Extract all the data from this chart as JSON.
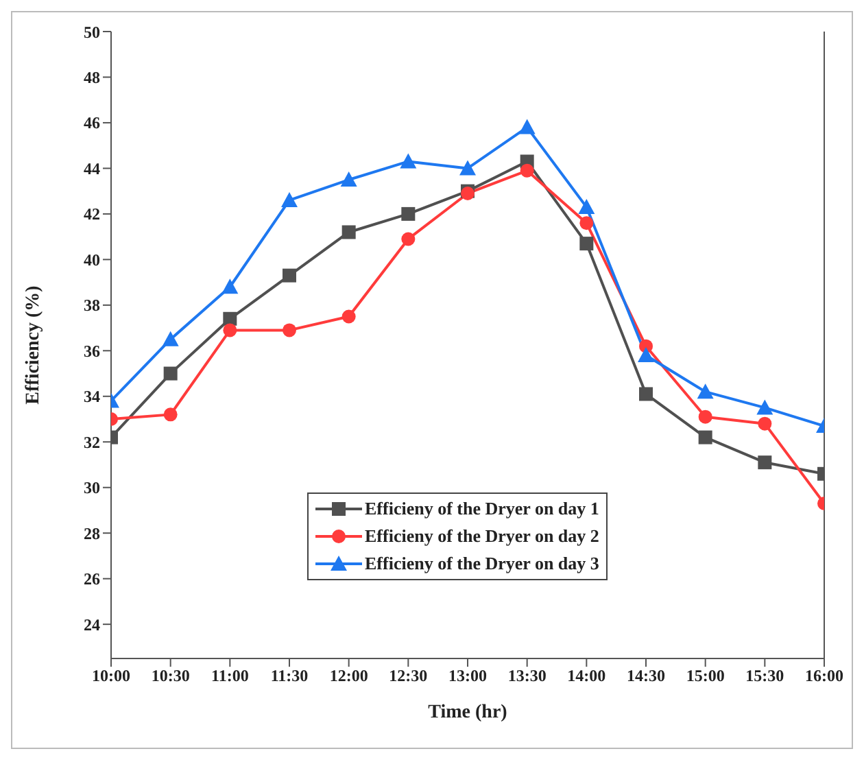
{
  "chart_data": {
    "type": "line",
    "xlabel": "Time (hr)",
    "ylabel": "Efficiency (%)",
    "categories": [
      "10:00",
      "10:30",
      "11:00",
      "11:30",
      "12:00",
      "12:30",
      "13:00",
      "13:30",
      "14:00",
      "14:30",
      "15:00",
      "15:30",
      "16:00"
    ],
    "series": [
      {
        "name": "Efficieny of the Dryer on day 1",
        "color": "#505050",
        "marker": "square",
        "values": [
          32.2,
          35.0,
          37.4,
          39.3,
          41.2,
          42.0,
          43.0,
          44.3,
          40.7,
          34.1,
          32.2,
          31.1,
          30.6
        ]
      },
      {
        "name": "Efficieny of the Dryer on day 2",
        "color": "#ff3b3b",
        "marker": "circle",
        "values": [
          33.0,
          33.2,
          36.9,
          36.9,
          37.5,
          40.9,
          42.9,
          43.9,
          41.6,
          36.2,
          33.1,
          32.8,
          29.3
        ]
      },
      {
        "name": "Efficieny of the Dryer on day 3",
        "color": "#1e78f0",
        "marker": "triangle",
        "values": [
          33.8,
          36.5,
          38.8,
          42.6,
          43.5,
          44.3,
          44.0,
          45.8,
          42.3,
          35.8,
          34.2,
          33.5,
          32.7
        ]
      }
    ],
    "ylim": [
      22.5,
      50
    ],
    "yticks": [
      24,
      26,
      28,
      30,
      32,
      34,
      36,
      38,
      40,
      42,
      44,
      46,
      48,
      50
    ],
    "grid": false,
    "legend": "bottom",
    "line_style": "solid"
  }
}
